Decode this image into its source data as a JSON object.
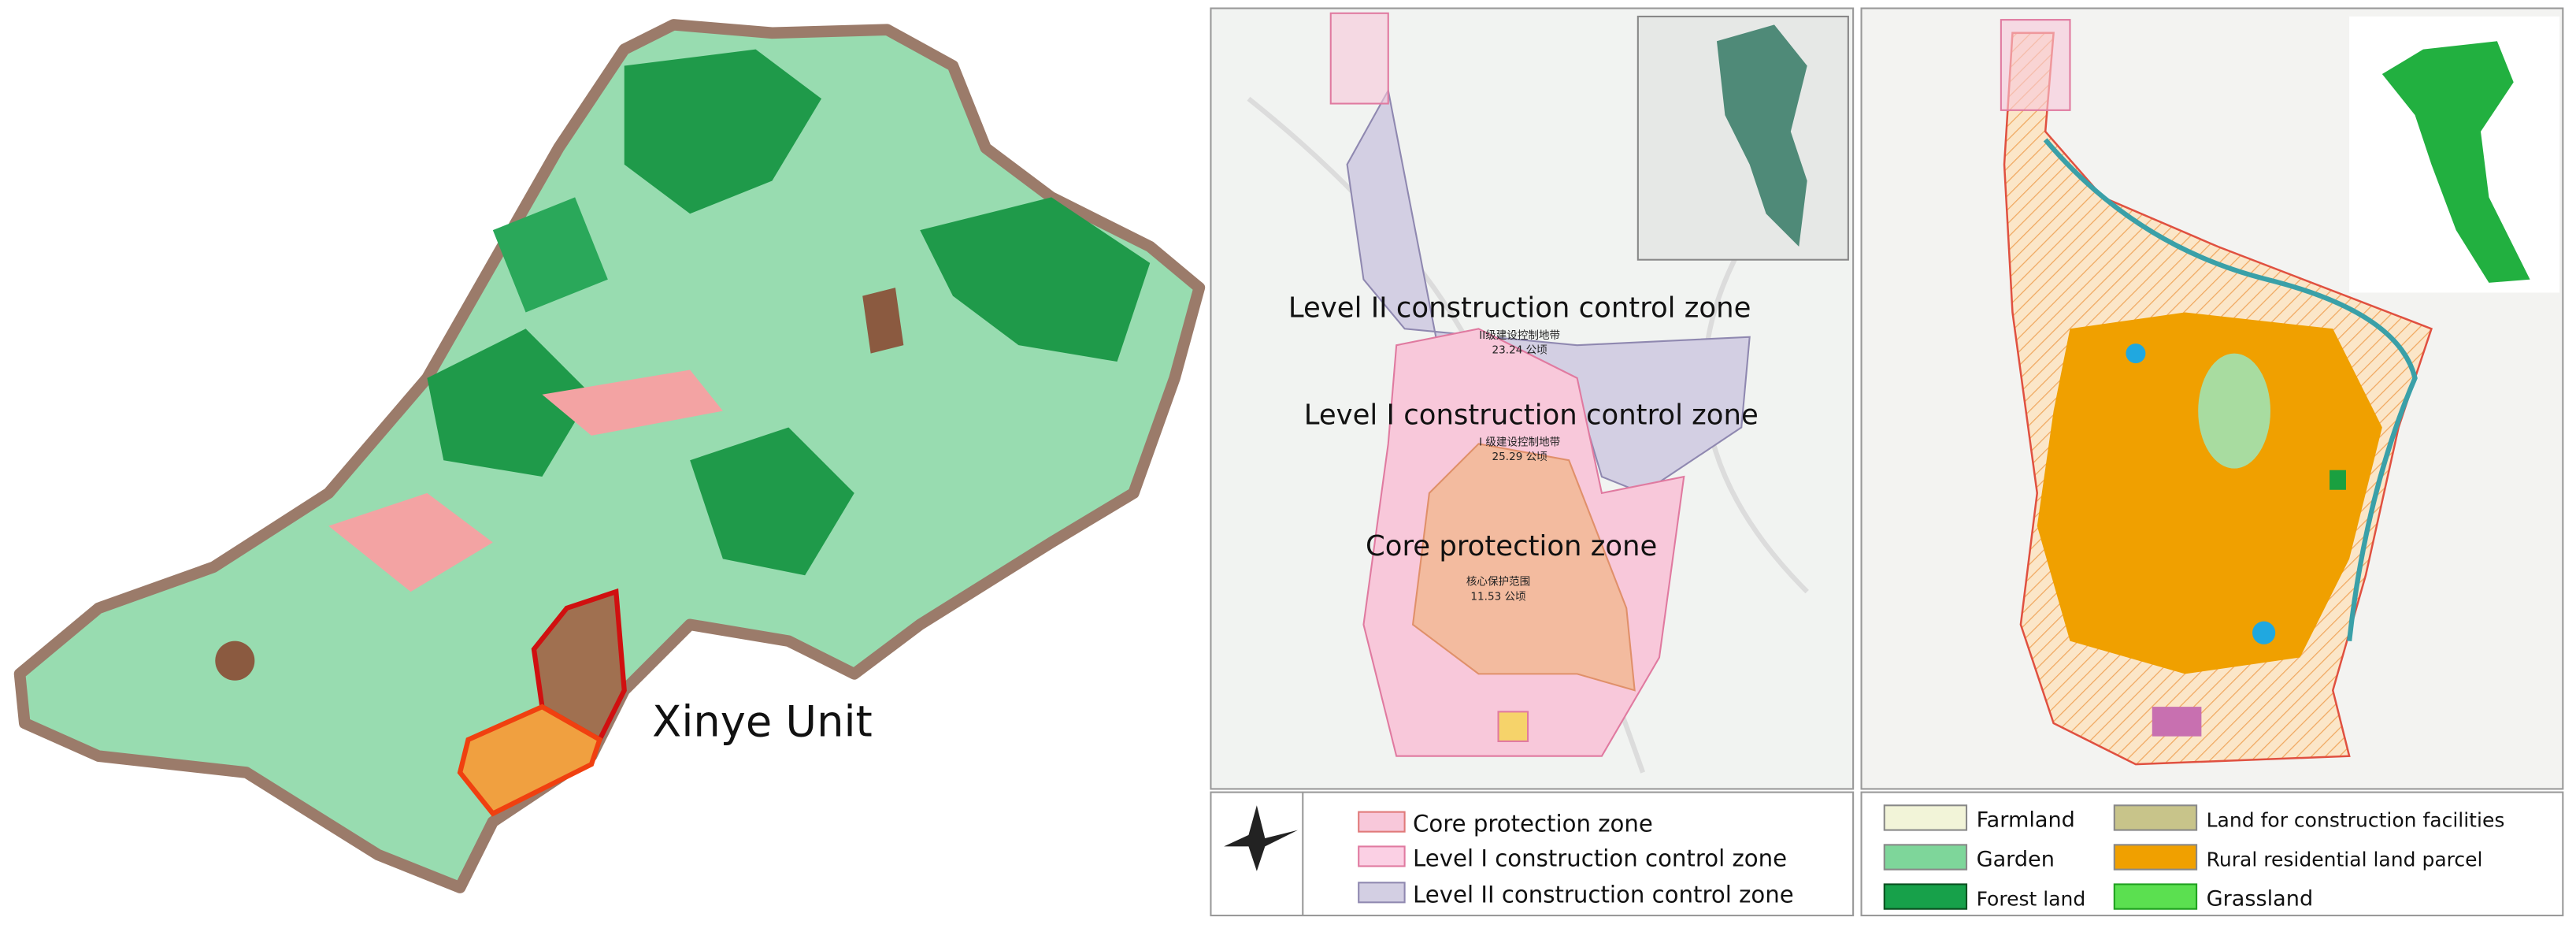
{
  "left_map": {
    "label": "Xinye Unit"
  },
  "zoning_map": {
    "zones": [
      {
        "label": "Level II construction control zone",
        "name_cn": "II级建设控制地带",
        "area": "23.24 公顷"
      },
      {
        "label": "Level I construction control zone",
        "name_cn": "I 级建设控制地带",
        "area": "25.29 公顷"
      },
      {
        "label": "Core protection zone",
        "name_cn": "核心保护范围",
        "area": "11.53 公顷"
      }
    ],
    "legend": [
      "Core protection zone",
      "Level I construction control zone",
      "Level II construction control zone"
    ]
  },
  "land_use_map": {
    "legend": [
      "Farmland",
      "Garden",
      "Forest land",
      "Land for construction facilities",
      "Rural residential land parcel",
      "Grassland"
    ]
  }
}
